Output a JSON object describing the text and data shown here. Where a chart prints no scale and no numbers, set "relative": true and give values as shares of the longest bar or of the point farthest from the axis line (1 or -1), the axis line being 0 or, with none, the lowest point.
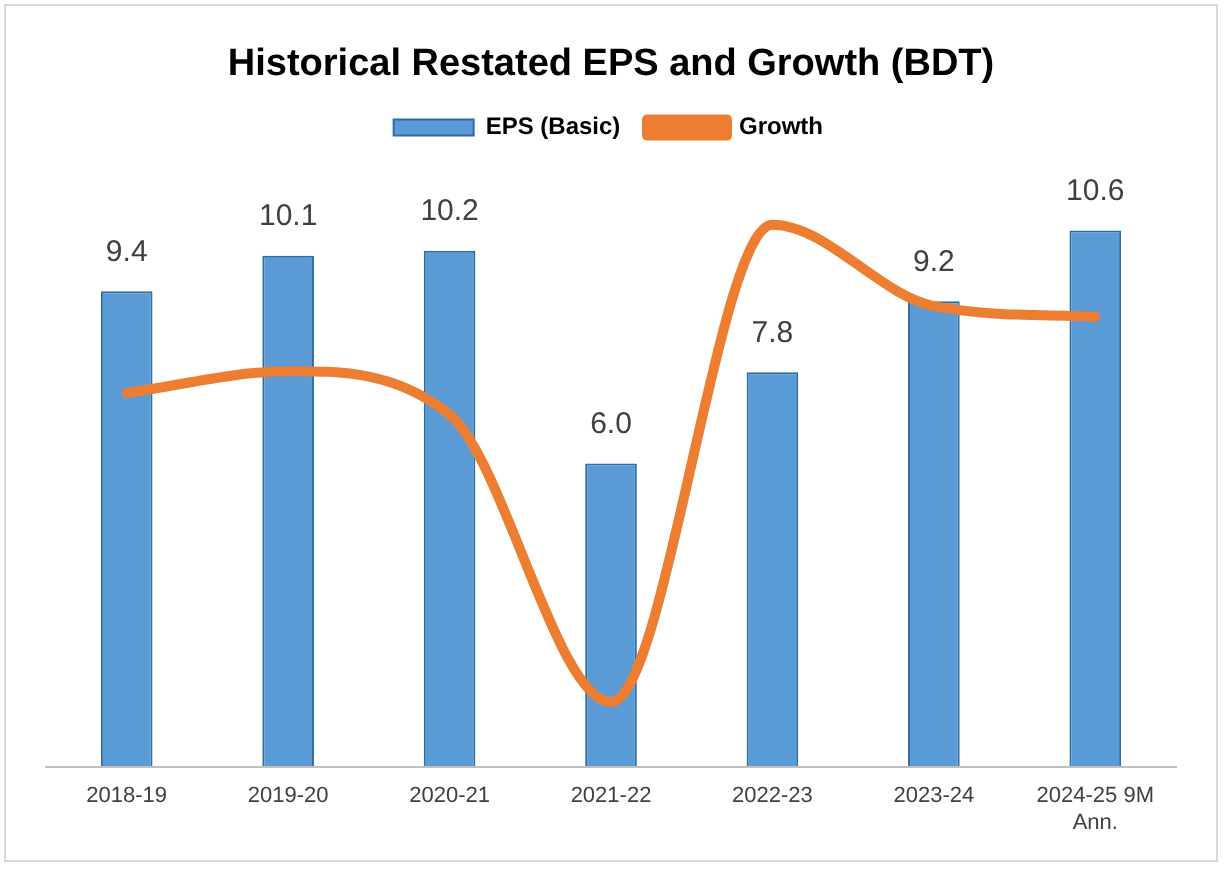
{
  "chart_data": [
    {
      "type": "bar",
      "title": "Historical Restated EPS and Growth (BDT)",
      "categories": [
        "2018-19",
        "2019-20",
        "2020-21",
        "2021-22",
        "2022-23",
        "2023-24",
        "2024-25 9M Ann."
      ],
      "series": [
        {
          "name": "EPS (Basic)",
          "color": "#5b9bd5",
          "values": [
            9.4,
            10.1,
            10.2,
            6.0,
            7.8,
            9.2,
            10.6
          ],
          "value_labels": [
            "9.4",
            "10.1",
            "10.2",
            "6.0",
            "7.8",
            "9.2",
            "10.6"
          ]
        }
      ],
      "legend": "top",
      "grid": false
    },
    {
      "type": "line",
      "categories": [
        null,
        null,
        null,
        null,
        null,
        null,
        null
      ],
      "series": [
        {
          "name": "Growth",
          "color": "#ed7d31",
          "values": [
            0.69,
            0.73,
            0.65,
            0.12,
            1,
            0.85,
            0.83
          ]
        }
      ],
      "relative": true,
      "legend": "top",
      "grid": false,
      "marker": "none"
    }
  ]
}
